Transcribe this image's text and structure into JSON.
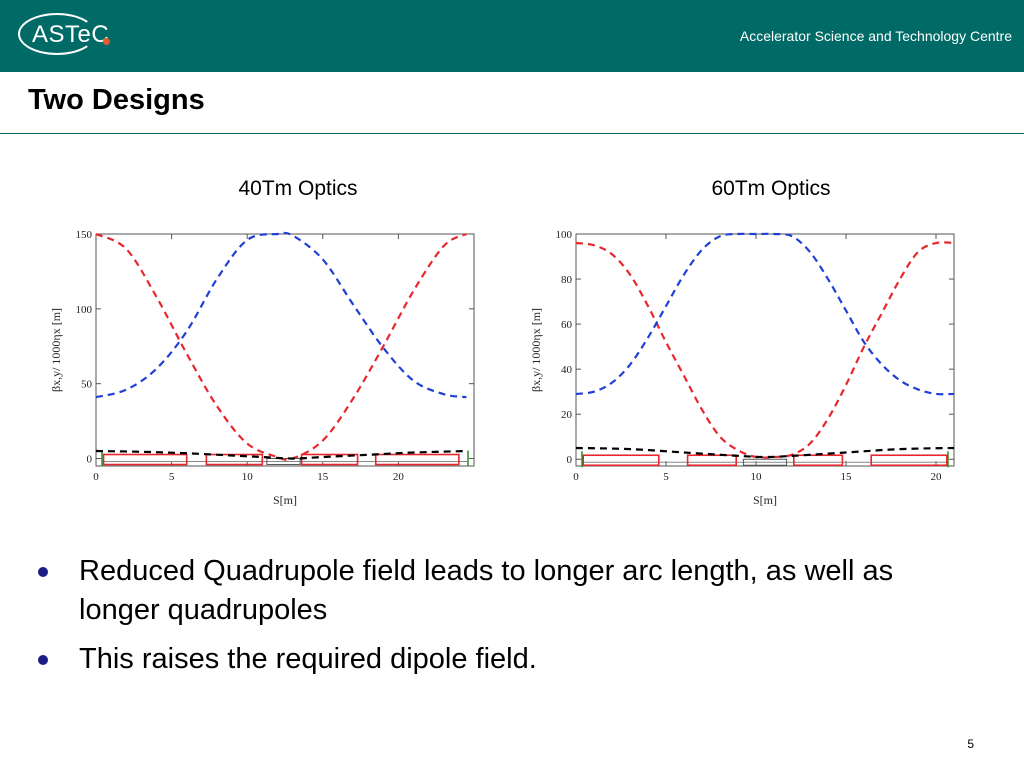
{
  "header": {
    "logo_text": "ASTeC",
    "org_name": "Accelerator Science and Technology Centre",
    "colors": {
      "band": "#006b66",
      "logo_dot": "#e05a2b"
    }
  },
  "slide": {
    "title": "Two Designs",
    "page_number": "5"
  },
  "bullets": [
    {
      "text": "Reduced Quadrupole field leads to longer arc length, as well as longer quadrupoles"
    },
    {
      "text": "This raises the required dipole field."
    }
  ],
  "chart_data": [
    {
      "type": "line",
      "title": "40Tm Optics",
      "xlabel": "S[m]",
      "ylabel": "βx,y/ 1000ηx [m]",
      "xlim": [
        0,
        25
      ],
      "ylim": [
        -5,
        150
      ],
      "xticks": [
        0,
        5,
        10,
        15,
        20
      ],
      "yticks": [
        0,
        50,
        100,
        150
      ],
      "grid": false,
      "series": [
        {
          "color": "#e8272d",
          "dash": true,
          "x": [
            0,
            2,
            4,
            6,
            8,
            10,
            12,
            13,
            15,
            17,
            19,
            21,
            23,
            24.5
          ],
          "y": [
            150,
            140,
            108,
            70,
            35,
            10,
            1,
            0,
            12,
            40,
            75,
            112,
            142,
            150
          ]
        },
        {
          "color": "#1f3fd6",
          "dash": true,
          "x": [
            0,
            2,
            4,
            6,
            8,
            10,
            12,
            13,
            15,
            17,
            19,
            21,
            23,
            24.5
          ],
          "y": [
            41,
            46,
            60,
            85,
            120,
            146,
            150,
            149,
            133,
            103,
            74,
            52,
            43,
            41
          ]
        },
        {
          "color": "#000000",
          "dash": true,
          "x": [
            0,
            3,
            6,
            9,
            11,
            13,
            15,
            18,
            21,
            24.5
          ],
          "y": [
            5,
            4.5,
            3.5,
            2,
            1,
            0,
            1,
            2.5,
            4,
            5
          ]
        }
      ],
      "magnets": [
        {
          "start": 0.5,
          "end": 6.0,
          "kind": "quad"
        },
        {
          "start": 7.3,
          "end": 11.0,
          "kind": "quad"
        },
        {
          "start": 11.3,
          "end": 13.5,
          "kind": "gap"
        },
        {
          "start": 13.6,
          "end": 17.3,
          "kind": "quad"
        },
        {
          "start": 18.5,
          "end": 24.0,
          "kind": "quad"
        }
      ]
    },
    {
      "type": "line",
      "title": "60Tm Optics",
      "xlabel": "S[m]",
      "ylabel": "βx,y/ 1000ηx [m]",
      "xlim": [
        0,
        21
      ],
      "ylim": [
        -3,
        100
      ],
      "xticks": [
        0,
        5,
        10,
        15,
        20
      ],
      "yticks": [
        0,
        20,
        40,
        60,
        80,
        100
      ],
      "grid": false,
      "series": [
        {
          "color": "#e8272d",
          "dash": true,
          "x": [
            0,
            1,
            2,
            3,
            4,
            5,
            6,
            7,
            8,
            9,
            10,
            11,
            12,
            13,
            14,
            15,
            16,
            17,
            18,
            19,
            20,
            21
          ],
          "y": [
            96,
            95,
            91,
            82,
            68,
            52,
            37,
            22,
            10,
            4,
            1,
            1,
            2,
            7,
            18,
            33,
            50,
            65,
            80,
            92,
            96,
            96
          ]
        },
        {
          "color": "#1f3fd6",
          "dash": true,
          "x": [
            0,
            1,
            2,
            3,
            4,
            5,
            6,
            7,
            8,
            9,
            10,
            11,
            12,
            13,
            14,
            15,
            16,
            17,
            18,
            19,
            20,
            21
          ],
          "y": [
            29,
            30,
            34,
            42,
            54,
            68,
            82,
            93,
            99,
            100,
            100,
            100,
            99,
            92,
            80,
            66,
            52,
            42,
            35,
            31,
            29,
            29
          ]
        },
        {
          "color": "#000000",
          "dash": true,
          "x": [
            0,
            3,
            6,
            9,
            10.5,
            12,
            15,
            18,
            21
          ],
          "y": [
            5,
            4.5,
            3,
            1.5,
            1,
            1.5,
            3,
            4.5,
            5
          ]
        }
      ],
      "magnets": [
        {
          "start": 0.4,
          "end": 4.6,
          "kind": "quad"
        },
        {
          "start": 6.2,
          "end": 8.9,
          "kind": "quad"
        },
        {
          "start": 9.3,
          "end": 11.7,
          "kind": "gap"
        },
        {
          "start": 12.1,
          "end": 14.8,
          "kind": "quad"
        },
        {
          "start": 16.4,
          "end": 20.6,
          "kind": "quad"
        }
      ]
    }
  ]
}
